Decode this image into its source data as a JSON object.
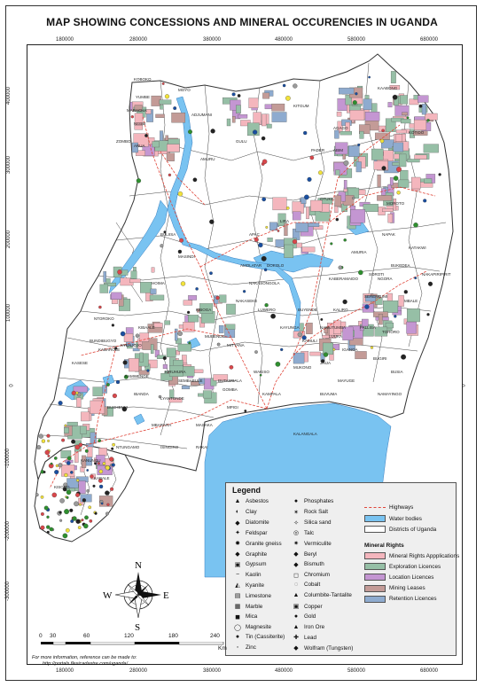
{
  "title": "MAP SHOWING CONCESSIONS AND MINERAL OCCURENCIES IN UGANDA",
  "x_ticks": [
    "180000",
    "280000",
    "380000",
    "480000",
    "580000",
    "680000"
  ],
  "y_ticks": [
    "400000",
    "300000",
    "200000",
    "100000",
    "0",
    "-100000",
    "-200000",
    "-300000"
  ],
  "region_labels": [
    "YUMBE",
    "MOYO",
    "ADJUMANI",
    "ARUA",
    "KITGUM",
    "KAABONG",
    "PADER",
    "GULU",
    "AMURU",
    "LIRA",
    "APAC",
    "OTUKE",
    "ABIM",
    "MOROTO",
    "NAPAK",
    "KATAKWI",
    "SOROTI",
    "KABERAMAIDO",
    "AMURIA",
    "BULIISA",
    "MASINDI",
    "HOIMA",
    "KIBAALE",
    "KYENJOJO",
    "KABAROLE",
    "KAMWENGE",
    "KASESE",
    "BUSHENYI",
    "IBANDA",
    "MBARARA",
    "ISINGIRO",
    "NTUNGAMO",
    "KABALE",
    "KISORO",
    "KANUNGU",
    "RAKAI",
    "MASAKA",
    "MUBENDE",
    "MITYANA",
    "KIBOGA",
    "NAKASEKE",
    "LUWERO",
    "KAYUNGA",
    "MUKONO",
    "WAKISO",
    "KAMPALA",
    "JINJA",
    "IGANGA",
    "BUGIRI",
    "BUSIA",
    "TORORO",
    "MBALE",
    "KUMI",
    "PALLISA",
    "NAKAPIRIPIRIT",
    "KALANGALA",
    "BUVUMA",
    "NAMAYINGO",
    "NTOROKO",
    "BUNDIBUGYO",
    "LYANTONDE",
    "SEMBABULE",
    "GOMBA",
    "MPIGI",
    "BUTAMBALA",
    "KIRUHURA",
    "KOTIDO",
    "AGAGO",
    "NEBBI",
    "ZOMBO",
    "KOBOKO",
    "MARACHA",
    "DOKOLO",
    "AMOLATAR",
    "NAKASONGOLA",
    "BUKEDEA",
    "SERERE",
    "NGORA",
    "KALIRO",
    "NAMUTUMBA",
    "BUYENDE",
    "KAMULI",
    "LUUKA",
    "MAYUGE"
  ],
  "legend": {
    "title": "Legend",
    "minerals_col1": [
      {
        "label": "Asbestos",
        "symbol": "▲"
      },
      {
        "label": "Clay",
        "symbol": "◐"
      },
      {
        "label": "Diatomite",
        "symbol": "◆"
      },
      {
        "label": "Feldspar",
        "symbol": "✦"
      },
      {
        "label": "Granite gneiss",
        "symbol": "✹"
      },
      {
        "label": "Graphite",
        "symbol": "◆"
      },
      {
        "label": "Gypsum",
        "symbol": "▣"
      },
      {
        "label": "Kaolin",
        "symbol": "−"
      },
      {
        "label": "Kyanite",
        "symbol": "◭"
      },
      {
        "label": "Limestone",
        "symbol": "▤"
      },
      {
        "label": "Marble",
        "symbol": "▦"
      },
      {
        "label": "Mica",
        "symbol": "◼"
      },
      {
        "label": "Magnesite",
        "symbol": "◯"
      },
      {
        "label": "Tin (Cassiterite)",
        "symbol": "●"
      },
      {
        "label": "Zinc",
        "symbol": "◦"
      }
    ],
    "minerals_col2": [
      {
        "label": "Phosphates",
        "symbol": "●"
      },
      {
        "label": "Rock Salt",
        "symbol": "✶"
      },
      {
        "label": "Silica sand",
        "symbol": "✧"
      },
      {
        "label": "Talc",
        "symbol": "◎"
      },
      {
        "label": "Vermiculite",
        "symbol": "✷"
      },
      {
        "label": "Beryl",
        "symbol": "◆"
      },
      {
        "label": "Bismuth",
        "symbol": "◆"
      },
      {
        "label": "Chromium",
        "symbol": "◻"
      },
      {
        "label": "Cobalt",
        "symbol": "◌"
      },
      {
        "label": "Columbite-Tantalite",
        "symbol": "▲"
      },
      {
        "label": "Copper",
        "symbol": "▣"
      },
      {
        "label": "Gold",
        "symbol": "●"
      },
      {
        "label": "Iron Ore",
        "symbol": "▲"
      },
      {
        "label": "Lead",
        "symbol": "✚"
      },
      {
        "label": "Wolfram (Tungsten)",
        "symbol": "◆"
      }
    ],
    "layers": [
      {
        "label": "Highways",
        "kind": "highway"
      },
      {
        "label": "Water bodies",
        "kind": "water",
        "color": "#79c3f1"
      },
      {
        "label": "Districts of Uganda",
        "kind": "district",
        "color": "#ffffff"
      }
    ],
    "mineral_rights_title": "Mineral Rights",
    "mineral_rights": [
      {
        "label": "Mineral Rights Appplications",
        "color": "#f4b6bd"
      },
      {
        "label": "Exploration Licences",
        "color": "#96bfa6"
      },
      {
        "label": "Location Licences",
        "color": "#c496d2"
      },
      {
        "label": "Mining Leases",
        "color": "#c39b97"
      },
      {
        "label": "Retention Licences",
        "color": "#8eabcf"
      }
    ]
  },
  "scale": {
    "labels": [
      "0",
      "30",
      "60",
      "120",
      "180",
      "240"
    ],
    "unit": "Km"
  },
  "more_info": [
    "For more information, reference can be made to:",
    "http://portals.flexicadastre.com/uganda/"
  ],
  "compass": {
    "n": "N",
    "s": "S",
    "e": "E",
    "w": "W"
  },
  "colors": {
    "water": "#79c3f1",
    "exploration": "#96bfa6",
    "application": "#f4b6bd",
    "highway": "#e0463a",
    "tin": "#2f8f2f",
    "gold": "#f2e23a"
  }
}
